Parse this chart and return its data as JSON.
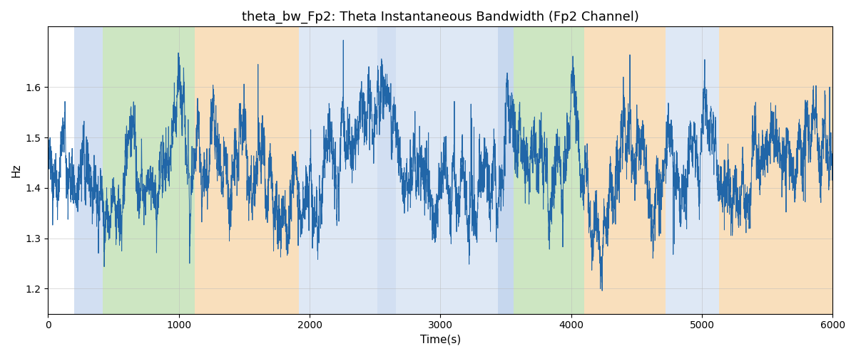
{
  "title": "theta_bw_Fp2: Theta Instantaneous Bandwidth (Fp2 Channel)",
  "xlabel": "Time(s)",
  "ylabel": "Hz",
  "xlim": [
    0,
    6000
  ],
  "ylim": [
    1.15,
    1.72
  ],
  "line_color": "#2166a8",
  "line_width": 0.7,
  "background_regions": [
    {
      "xmin": 200,
      "xmax": 420,
      "color": "#aec6e8",
      "alpha": 0.55
    },
    {
      "xmin": 420,
      "xmax": 1120,
      "color": "#90c978",
      "alpha": 0.45
    },
    {
      "xmin": 1120,
      "xmax": 1920,
      "color": "#f5c07a",
      "alpha": 0.5
    },
    {
      "xmin": 1920,
      "xmax": 2520,
      "color": "#aec6e8",
      "alpha": 0.4
    },
    {
      "xmin": 2520,
      "xmax": 2660,
      "color": "#aec6e8",
      "alpha": 0.55
    },
    {
      "xmin": 2660,
      "xmax": 3440,
      "color": "#aec6e8",
      "alpha": 0.4
    },
    {
      "xmin": 3440,
      "xmax": 3560,
      "color": "#aec6e8",
      "alpha": 0.7
    },
    {
      "xmin": 3560,
      "xmax": 4100,
      "color": "#90c978",
      "alpha": 0.45
    },
    {
      "xmin": 4100,
      "xmax": 4720,
      "color": "#f5c07a",
      "alpha": 0.5
    },
    {
      "xmin": 4720,
      "xmax": 5130,
      "color": "#aec6e8",
      "alpha": 0.4
    },
    {
      "xmin": 5130,
      "xmax": 6000,
      "color": "#f5c07a",
      "alpha": 0.5
    }
  ],
  "grid_color": "#bbbbbb",
  "grid_alpha": 0.7,
  "title_fontsize": 13,
  "label_fontsize": 11,
  "yticks": [
    1.2,
    1.3,
    1.4,
    1.5,
    1.6
  ],
  "xticks": [
    0,
    1000,
    2000,
    3000,
    4000,
    5000,
    6000
  ]
}
